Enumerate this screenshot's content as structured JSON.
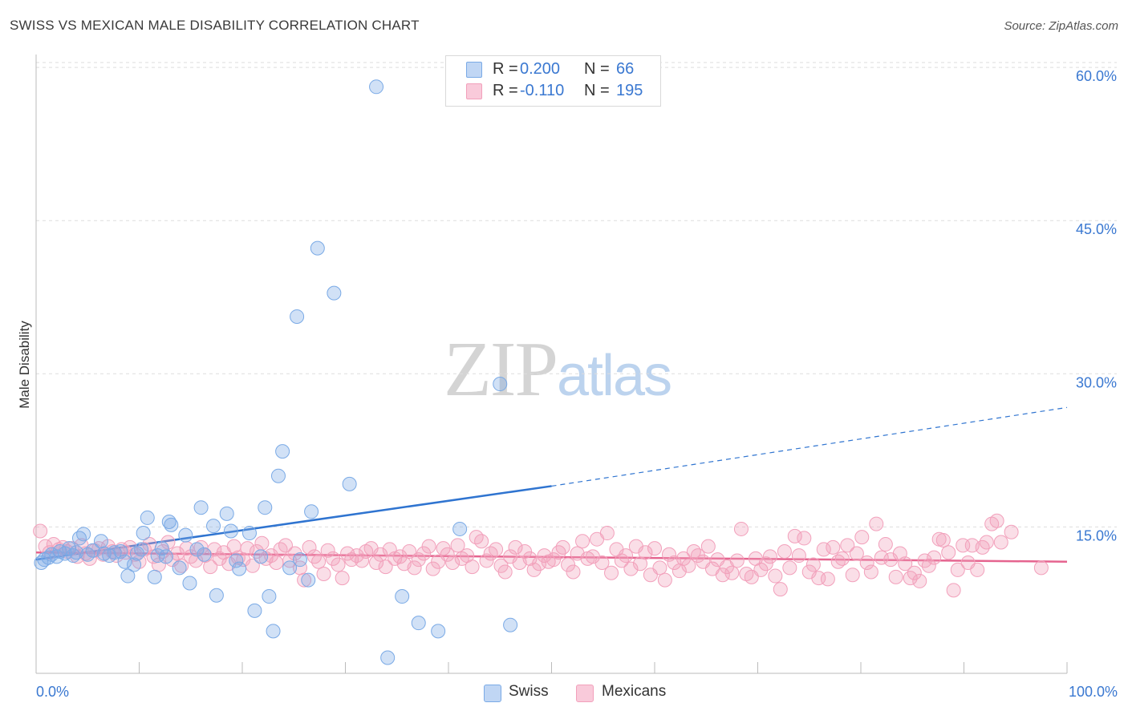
{
  "title": "SWISS VS MEXICAN MALE DISABILITY CORRELATION CHART",
  "source": "Source: ZipAtlas.com",
  "watermark": {
    "zip": "ZIP",
    "atlas": "atlas"
  },
  "legend": {
    "rows": [
      {
        "r_label": "R =",
        "r_value": "0.200",
        "n_label": "N =",
        "n_value": "66"
      },
      {
        "r_label": "R =",
        "r_value": "-0.110",
        "n_label": "N =",
        "n_value": "195"
      }
    ]
  },
  "bottom_legend": [
    "Swiss",
    "Mexicans"
  ],
  "chart_data": {
    "type": "scatter",
    "title": "SWISS VS MEXICAN MALE DISABILITY CORRELATION CHART",
    "xlabel": "",
    "ylabel": "Male Disability",
    "xlim": [
      0,
      100
    ],
    "ylim": [
      0,
      64
    ],
    "x_tick_labels": [
      "0.0%",
      "100.0%"
    ],
    "y_ticks": [
      15,
      30,
      45,
      60
    ],
    "y_tick_labels": [
      "15.0%",
      "30.0%",
      "45.0%",
      "60.0%"
    ],
    "grid": "horizontal dashed",
    "legend_position": "top-center",
    "colors": {
      "Swiss": "#7aaae6",
      "Mexicans": "#f2a0bb",
      "swiss_line": "#2f74d0",
      "mex_line": "#e5648f",
      "tick_text": "#3a78d1"
    },
    "series": [
      {
        "name": "Swiss",
        "r": 0.2,
        "n": 66,
        "trend": {
          "x0": 0,
          "y0": 11.8,
          "x1": 50,
          "y1": 19.0,
          "dashed_to_x": 100,
          "dashed_to_y": 26.7
        },
        "points": [
          [
            0.5,
            11.5
          ],
          [
            0.8,
            11.8
          ],
          [
            1.2,
            12.0
          ],
          [
            1.5,
            12.3
          ],
          [
            2.0,
            12.1
          ],
          [
            2.3,
            12.6
          ],
          [
            2.8,
            12.4
          ],
          [
            3.2,
            12.9
          ],
          [
            3.6,
            12.2
          ],
          [
            3.9,
            12.5
          ],
          [
            4.2,
            13.9
          ],
          [
            4.6,
            14.3
          ],
          [
            5.0,
            12.3
          ],
          [
            5.5,
            12.7
          ],
          [
            6.3,
            13.6
          ],
          [
            6.6,
            12.4
          ],
          [
            7.1,
            12.2
          ],
          [
            7.6,
            12.5
          ],
          [
            8.2,
            12.6
          ],
          [
            8.6,
            11.6
          ],
          [
            8.9,
            10.2
          ],
          [
            9.5,
            11.3
          ],
          [
            9.8,
            12.4
          ],
          [
            10.2,
            12.8
          ],
          [
            10.4,
            14.4
          ],
          [
            10.8,
            15.9
          ],
          [
            11.5,
            10.1
          ],
          [
            11.8,
            12.2
          ],
          [
            12.2,
            12.9
          ],
          [
            12.6,
            12.1
          ],
          [
            12.9,
            15.5
          ],
          [
            13.1,
            15.2
          ],
          [
            13.9,
            11.0
          ],
          [
            14.5,
            14.2
          ],
          [
            14.9,
            9.5
          ],
          [
            15.6,
            12.8
          ],
          [
            16.0,
            16.9
          ],
          [
            16.3,
            12.3
          ],
          [
            17.2,
            15.1
          ],
          [
            17.5,
            8.3
          ],
          [
            18.5,
            16.3
          ],
          [
            18.9,
            14.6
          ],
          [
            19.4,
            11.7
          ],
          [
            19.7,
            10.9
          ],
          [
            20.7,
            14.4
          ],
          [
            21.2,
            6.8
          ],
          [
            21.8,
            12.1
          ],
          [
            22.2,
            16.9
          ],
          [
            22.6,
            8.2
          ],
          [
            23.0,
            4.8
          ],
          [
            23.5,
            20.0
          ],
          [
            23.9,
            22.4
          ],
          [
            24.6,
            11.0
          ],
          [
            25.3,
            35.6
          ],
          [
            25.6,
            11.8
          ],
          [
            26.4,
            9.8
          ],
          [
            26.7,
            16.5
          ],
          [
            27.3,
            42.3
          ],
          [
            28.9,
            37.9
          ],
          [
            30.4,
            19.2
          ],
          [
            33.0,
            58.1
          ],
          [
            34.1,
            2.2
          ],
          [
            35.5,
            8.2
          ],
          [
            37.1,
            5.6
          ],
          [
            41.1,
            14.8
          ],
          [
            45.0,
            29.0
          ],
          [
            39.0,
            4.8
          ],
          [
            46.0,
            5.4
          ]
        ]
      },
      {
        "name": "Mexicans",
        "r": -0.11,
        "n": 195,
        "trend": {
          "x0": 0,
          "y0": 12.5,
          "x1": 100,
          "y1": 11.6
        },
        "points": [
          [
            0.4,
            14.6
          ],
          [
            0.9,
            13.1
          ],
          [
            1.3,
            12.5
          ],
          [
            1.7,
            13.3
          ],
          [
            2.2,
            12.8
          ],
          [
            2.6,
            13.0
          ],
          [
            3.0,
            12.6
          ],
          [
            3.5,
            12.9
          ],
          [
            4.0,
            12.1
          ],
          [
            4.4,
            13.2
          ],
          [
            4.8,
            12.4
          ],
          [
            5.2,
            11.9
          ],
          [
            5.7,
            12.7
          ],
          [
            6.1,
            12.9
          ],
          [
            6.5,
            12.3
          ],
          [
            7.0,
            13.1
          ],
          [
            7.4,
            12.6
          ],
          [
            7.8,
            12.2
          ],
          [
            8.3,
            12.8
          ],
          [
            8.7,
            12.5
          ],
          [
            9.1,
            13.0
          ],
          [
            9.6,
            12.3
          ],
          [
            10.0,
            11.6
          ],
          [
            10.5,
            12.8
          ],
          [
            11.0,
            13.3
          ],
          [
            11.4,
            12.1
          ],
          [
            11.9,
            11.3
          ],
          [
            12.3,
            12.6
          ],
          [
            12.8,
            13.5
          ],
          [
            13.2,
            11.8
          ],
          [
            13.7,
            12.4
          ],
          [
            14.1,
            11.2
          ],
          [
            14.6,
            12.9
          ],
          [
            15.0,
            12.1
          ],
          [
            15.5,
            11.7
          ],
          [
            16.0,
            13.0
          ],
          [
            16.4,
            12.2
          ],
          [
            16.9,
            11.1
          ],
          [
            17.3,
            12.8
          ],
          [
            17.8,
            11.9
          ],
          [
            18.2,
            12.5
          ],
          [
            18.7,
            11.4
          ],
          [
            19.2,
            13.1
          ],
          [
            19.6,
            12.0
          ],
          [
            20.1,
            11.8
          ],
          [
            20.5,
            12.9
          ],
          [
            21.0,
            11.2
          ],
          [
            21.4,
            12.6
          ],
          [
            21.9,
            13.4
          ],
          [
            22.3,
            11.9
          ],
          [
            22.8,
            12.2
          ],
          [
            23.3,
            11.5
          ],
          [
            23.7,
            12.8
          ],
          [
            24.2,
            13.2
          ],
          [
            24.6,
            11.7
          ],
          [
            25.1,
            12.4
          ],
          [
            25.6,
            11.0
          ],
          [
            26.0,
            9.8
          ],
          [
            26.5,
            13.0
          ],
          [
            27.0,
            12.1
          ],
          [
            27.4,
            11.6
          ],
          [
            27.9,
            10.4
          ],
          [
            28.3,
            12.7
          ],
          [
            28.8,
            11.9
          ],
          [
            29.3,
            11.3
          ],
          [
            29.7,
            10.0
          ],
          [
            30.2,
            12.4
          ],
          [
            30.6,
            11.8
          ],
          [
            31.1,
            12.2
          ],
          [
            31.6,
            11.7
          ],
          [
            32.0,
            12.6
          ],
          [
            32.5,
            12.9
          ],
          [
            33.0,
            11.5
          ],
          [
            33.4,
            12.3
          ],
          [
            33.9,
            11.1
          ],
          [
            34.3,
            12.8
          ],
          [
            34.8,
            11.9
          ],
          [
            35.3,
            12.1
          ],
          [
            35.7,
            11.4
          ],
          [
            36.2,
            12.6
          ],
          [
            36.7,
            11.0
          ],
          [
            37.1,
            11.8
          ],
          [
            37.6,
            12.4
          ],
          [
            38.1,
            13.1
          ],
          [
            38.5,
            10.9
          ],
          [
            39.0,
            11.6
          ],
          [
            39.5,
            12.9
          ],
          [
            39.9,
            12.3
          ],
          [
            40.4,
            11.5
          ],
          [
            40.9,
            13.2
          ],
          [
            41.3,
            11.9
          ],
          [
            41.8,
            12.2
          ],
          [
            42.3,
            11.1
          ],
          [
            42.7,
            14.0
          ],
          [
            43.2,
            13.6
          ],
          [
            43.7,
            11.7
          ],
          [
            44.1,
            12.4
          ],
          [
            44.6,
            12.8
          ],
          [
            45.1,
            11.2
          ],
          [
            45.5,
            10.6
          ],
          [
            46.0,
            12.1
          ],
          [
            46.5,
            13.0
          ],
          [
            46.9,
            11.5
          ],
          [
            47.4,
            12.6
          ],
          [
            47.9,
            11.9
          ],
          [
            48.3,
            10.8
          ],
          [
            48.8,
            11.4
          ],
          [
            49.3,
            12.2
          ],
          [
            49.7,
            11.6
          ],
          [
            50.2,
            11.8
          ],
          [
            50.7,
            12.5
          ],
          [
            51.1,
            13.0
          ],
          [
            51.6,
            11.3
          ],
          [
            52.1,
            10.6
          ],
          [
            52.5,
            12.4
          ],
          [
            53.0,
            13.6
          ],
          [
            53.5,
            11.9
          ],
          [
            54.0,
            12.1
          ],
          [
            54.4,
            13.8
          ],
          [
            54.9,
            11.5
          ],
          [
            55.4,
            14.4
          ],
          [
            55.8,
            10.5
          ],
          [
            56.3,
            12.8
          ],
          [
            56.8,
            11.7
          ],
          [
            57.2,
            12.2
          ],
          [
            57.7,
            10.9
          ],
          [
            58.2,
            13.1
          ],
          [
            58.6,
            11.4
          ],
          [
            59.1,
            12.5
          ],
          [
            59.6,
            10.3
          ],
          [
            60.0,
            12.9
          ],
          [
            60.5,
            11.0
          ],
          [
            61.0,
            9.8
          ],
          [
            61.4,
            12.3
          ],
          [
            61.9,
            11.5
          ],
          [
            62.4,
            10.7
          ],
          [
            62.8,
            11.9
          ],
          [
            63.3,
            11.2
          ],
          [
            63.8,
            12.6
          ],
          [
            64.2,
            12.2
          ],
          [
            64.7,
            11.6
          ],
          [
            65.2,
            13.1
          ],
          [
            65.6,
            10.9
          ],
          [
            66.1,
            11.8
          ],
          [
            66.6,
            10.3
          ],
          [
            67.0,
            11.1
          ],
          [
            67.5,
            10.5
          ],
          [
            68.0,
            11.7
          ],
          [
            68.4,
            14.8
          ],
          [
            68.9,
            10.4
          ],
          [
            69.4,
            10.1
          ],
          [
            69.8,
            11.9
          ],
          [
            70.3,
            10.8
          ],
          [
            70.8,
            11.4
          ],
          [
            71.2,
            12.1
          ],
          [
            71.7,
            10.2
          ],
          [
            72.2,
            8.9
          ],
          [
            72.6,
            12.6
          ],
          [
            73.1,
            11.0
          ],
          [
            73.6,
            14.1
          ],
          [
            74.0,
            12.2
          ],
          [
            74.5,
            13.9
          ],
          [
            75.0,
            10.6
          ],
          [
            75.4,
            11.3
          ],
          [
            75.9,
            10.0
          ],
          [
            76.4,
            12.8
          ],
          [
            76.8,
            9.9
          ],
          [
            77.3,
            13.0
          ],
          [
            77.8,
            11.6
          ],
          [
            78.2,
            11.9
          ],
          [
            78.7,
            13.2
          ],
          [
            79.2,
            10.3
          ],
          [
            79.6,
            12.4
          ],
          [
            80.1,
            14.0
          ],
          [
            80.6,
            11.5
          ],
          [
            81.0,
            10.6
          ],
          [
            81.5,
            15.3
          ],
          [
            82.0,
            12.0
          ],
          [
            82.4,
            13.3
          ],
          [
            82.9,
            11.8
          ],
          [
            83.4,
            10.1
          ],
          [
            83.8,
            12.4
          ],
          [
            84.3,
            11.4
          ],
          [
            84.8,
            10.0
          ],
          [
            85.2,
            10.5
          ],
          [
            85.7,
            9.7
          ],
          [
            86.2,
            11.7
          ],
          [
            86.6,
            11.2
          ],
          [
            87.1,
            12.0
          ],
          [
            87.6,
            13.8
          ],
          [
            88.0,
            13.7
          ],
          [
            88.5,
            12.5
          ],
          [
            89.0,
            8.8
          ],
          [
            89.4,
            10.8
          ],
          [
            89.9,
            13.2
          ],
          [
            90.4,
            11.5
          ],
          [
            90.8,
            13.2
          ],
          [
            91.3,
            10.8
          ],
          [
            91.8,
            13.0
          ],
          [
            92.2,
            13.5
          ],
          [
            92.7,
            15.3
          ],
          [
            93.2,
            15.6
          ],
          [
            93.6,
            13.5
          ],
          [
            94.6,
            14.5
          ],
          [
            97.5,
            11.0
          ]
        ]
      }
    ]
  }
}
